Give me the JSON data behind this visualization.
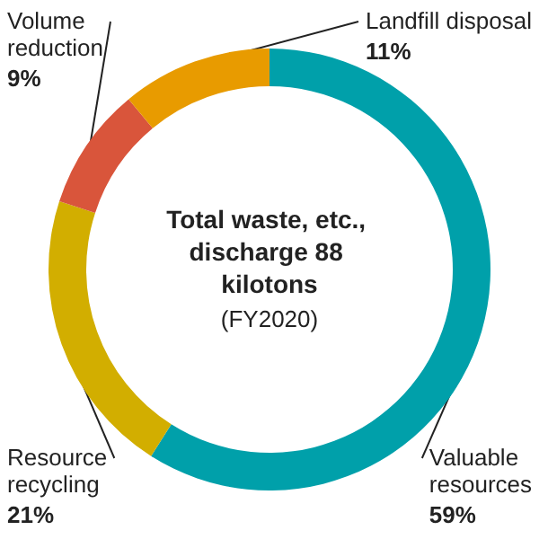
{
  "chart_data": {
    "type": "donut",
    "title": "Total waste, etc., discharge 88 kilotons",
    "subtitle": "(FY2020)",
    "categories": [
      "Valuable resources",
      "Resource recycling",
      "Volume reduction",
      "Landfill disposal"
    ],
    "values": [
      59,
      21,
      9,
      11
    ],
    "value_labels": [
      "59%",
      "21%",
      "9%",
      "11%"
    ],
    "colors": [
      "#00a0aa",
      "#d2ae00",
      "#d9553b",
      "#e89b00"
    ],
    "legend": false
  }
}
